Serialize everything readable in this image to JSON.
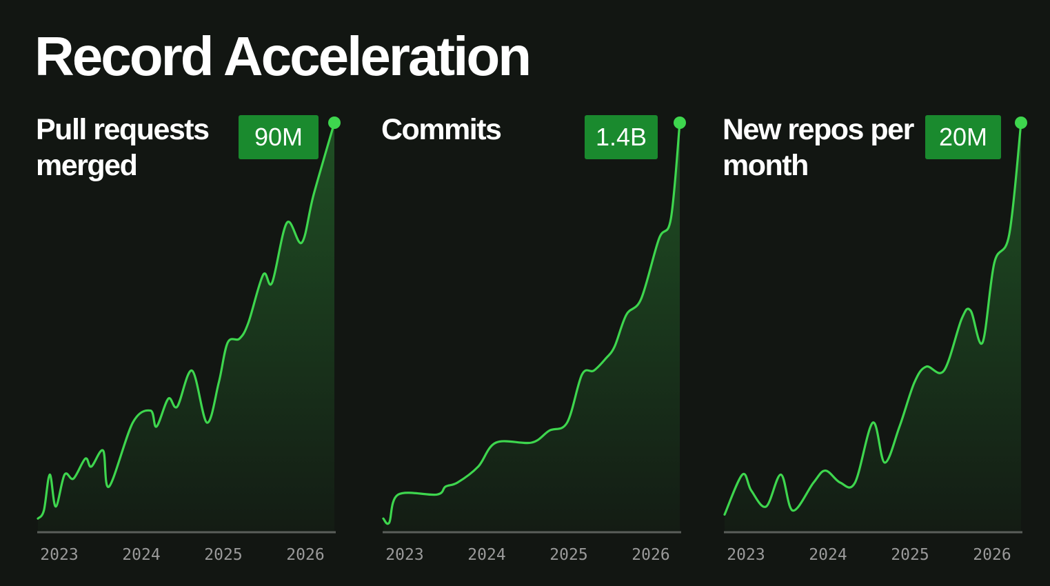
{
  "title": "Record Acceleration",
  "colors": {
    "background": "#121612",
    "line": "#3ed64e",
    "badge": "#1a8a2e",
    "axis": "#5a5e5a",
    "tick": "#9a9a9a"
  },
  "chart_data": [
    {
      "type": "area",
      "title": "Pull requests merged",
      "callout": "90M",
      "x_ticks": [
        "2023",
        "2024",
        "2025",
        "2026"
      ],
      "points": [
        [
          0.0,
          0.01
        ],
        [
          0.1,
          0.03
        ],
        [
          0.2,
          0.12
        ],
        [
          0.3,
          0.04
        ],
        [
          0.45,
          0.12
        ],
        [
          0.6,
          0.11
        ],
        [
          0.8,
          0.16
        ],
        [
          0.9,
          0.14
        ],
        [
          1.1,
          0.18
        ],
        [
          1.2,
          0.09
        ],
        [
          1.6,
          0.25
        ],
        [
          1.9,
          0.28
        ],
        [
          2.0,
          0.24
        ],
        [
          2.2,
          0.31
        ],
        [
          2.35,
          0.29
        ],
        [
          2.6,
          0.38
        ],
        [
          2.85,
          0.25
        ],
        [
          3.05,
          0.35
        ],
        [
          3.2,
          0.45
        ],
        [
          3.4,
          0.46
        ],
        [
          3.55,
          0.5
        ],
        [
          3.8,
          0.62
        ],
        [
          3.95,
          0.6
        ],
        [
          4.2,
          0.75
        ],
        [
          4.45,
          0.7
        ],
        [
          4.65,
          0.82
        ],
        [
          5.0,
          1.0
        ]
      ]
    },
    {
      "type": "area",
      "title": "Commits",
      "callout": "1.4B",
      "x_ticks": [
        "2023",
        "2024",
        "2025",
        "2026"
      ],
      "points": [
        [
          0.0,
          0.01
        ],
        [
          0.1,
          0.0
        ],
        [
          0.25,
          0.07
        ],
        [
          0.9,
          0.07
        ],
        [
          1.05,
          0.09
        ],
        [
          1.25,
          0.1
        ],
        [
          1.6,
          0.14
        ],
        [
          1.9,
          0.2
        ],
        [
          2.5,
          0.2
        ],
        [
          2.8,
          0.23
        ],
        [
          3.1,
          0.25
        ],
        [
          3.35,
          0.37
        ],
        [
          3.55,
          0.38
        ],
        [
          3.75,
          0.41
        ],
        [
          3.9,
          0.44
        ],
        [
          4.1,
          0.52
        ],
        [
          4.35,
          0.56
        ],
        [
          4.65,
          0.71
        ],
        [
          4.85,
          0.76
        ],
        [
          5.0,
          1.0
        ]
      ]
    },
    {
      "type": "area",
      "title": "New repos per month",
      "callout": "20M",
      "x_ticks": [
        "2023",
        "2024",
        "2025",
        "2026"
      ],
      "points": [
        [
          0.0,
          0.02
        ],
        [
          0.3,
          0.12
        ],
        [
          0.45,
          0.08
        ],
        [
          0.7,
          0.04
        ],
        [
          0.95,
          0.12
        ],
        [
          1.15,
          0.03
        ],
        [
          1.5,
          0.1
        ],
        [
          1.7,
          0.13
        ],
        [
          1.95,
          0.1
        ],
        [
          2.2,
          0.1
        ],
        [
          2.5,
          0.25
        ],
        [
          2.7,
          0.15
        ],
        [
          2.95,
          0.24
        ],
        [
          3.2,
          0.35
        ],
        [
          3.4,
          0.39
        ],
        [
          3.7,
          0.38
        ],
        [
          4.0,
          0.51
        ],
        [
          4.15,
          0.53
        ],
        [
          4.35,
          0.45
        ],
        [
          4.55,
          0.65
        ],
        [
          4.8,
          0.72
        ],
        [
          5.0,
          1.0
        ]
      ]
    }
  ]
}
